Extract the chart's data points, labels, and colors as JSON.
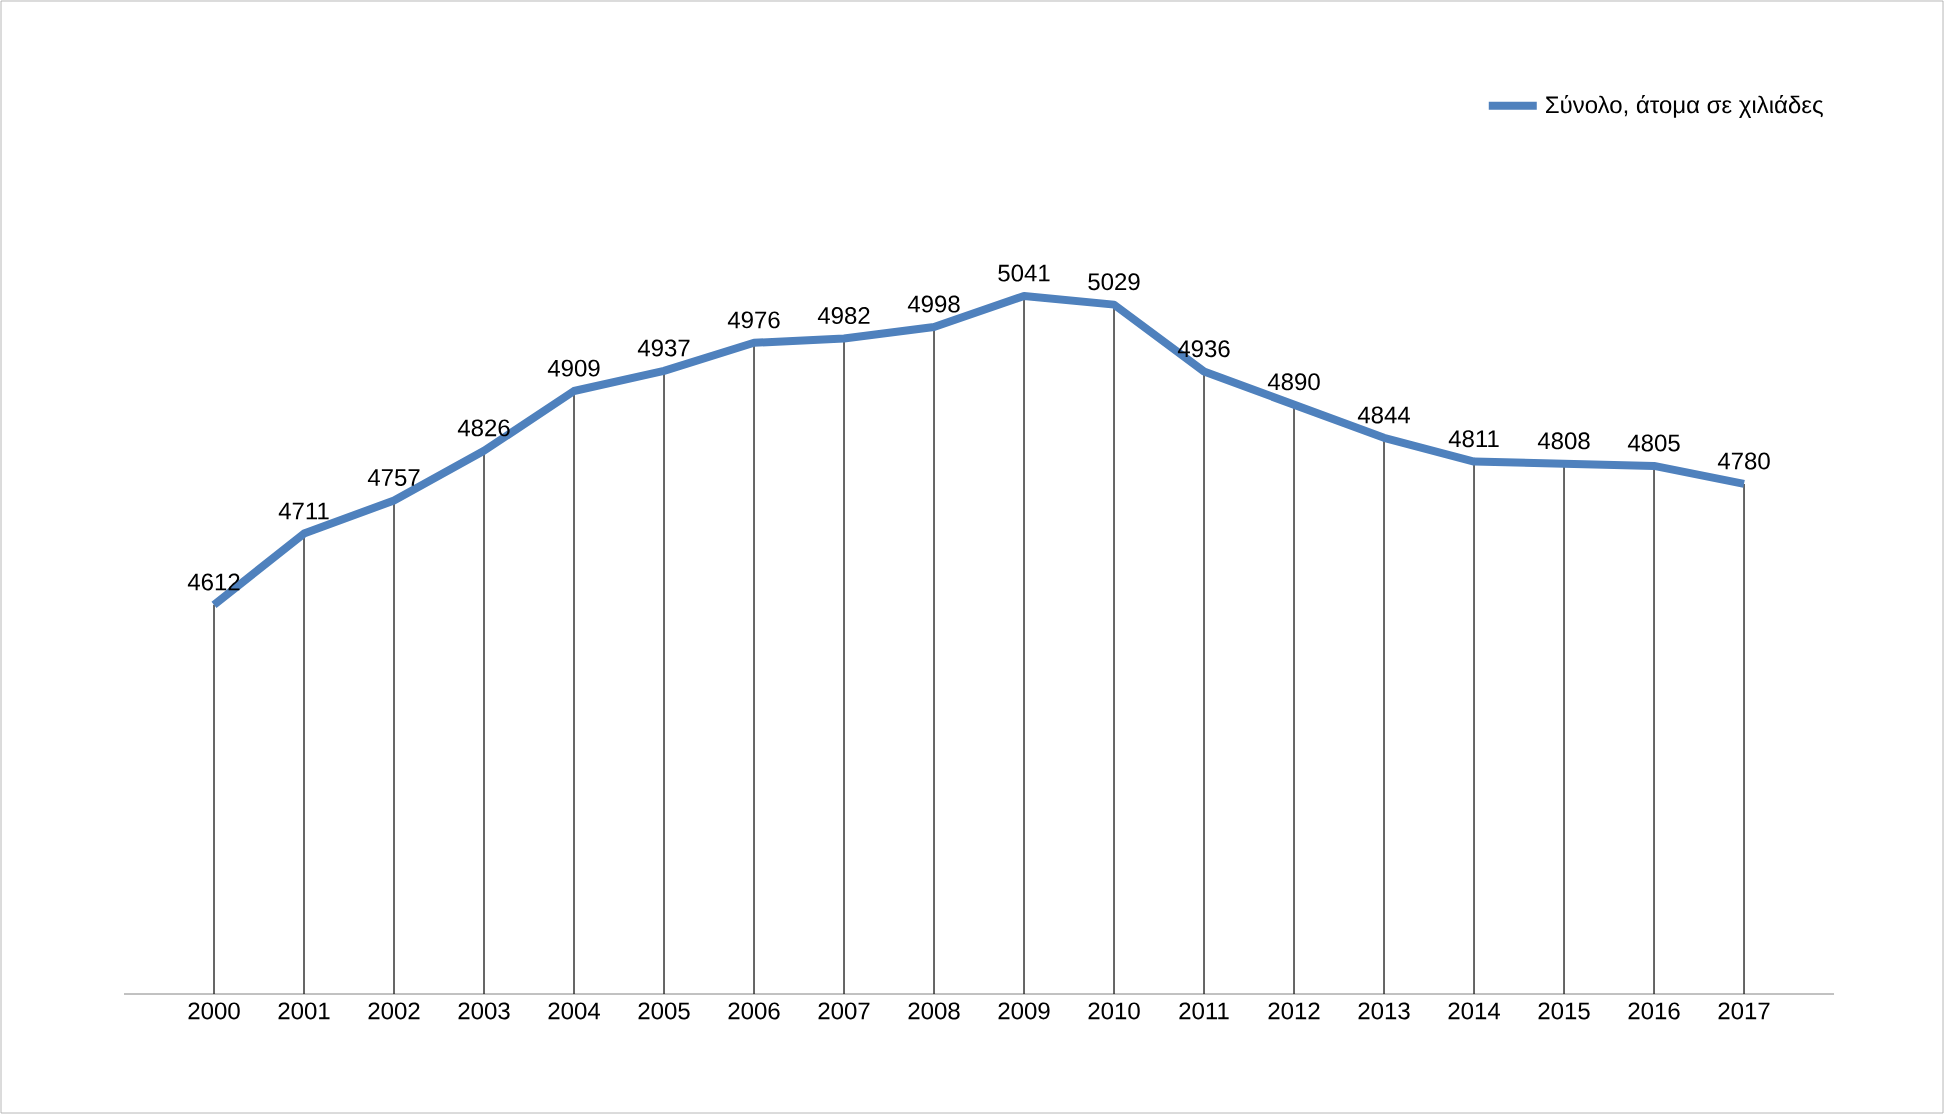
{
  "chart_data": {
    "type": "line",
    "categories": [
      "2000",
      "2001",
      "2002",
      "2003",
      "2004",
      "2005",
      "2006",
      "2007",
      "2008",
      "2009",
      "2010",
      "2011",
      "2012",
      "2013",
      "2014",
      "2015",
      "2016",
      "2017"
    ],
    "series": [
      {
        "name": "Σύνολο, άτομα σε χιλιάδες",
        "color": "#4f81bd",
        "values": [
          4612,
          4711,
          4757,
          4826,
          4909,
          4937,
          4976,
          4982,
          4998,
          5041,
          5029,
          4936,
          4890,
          4844,
          4811,
          4808,
          4805,
          4780
        ]
      }
    ],
    "tick_labels": "x",
    "data_labels": true,
    "legend": "top right",
    "marker": "none",
    "line_style": "solid",
    "grid": "x"
  }
}
